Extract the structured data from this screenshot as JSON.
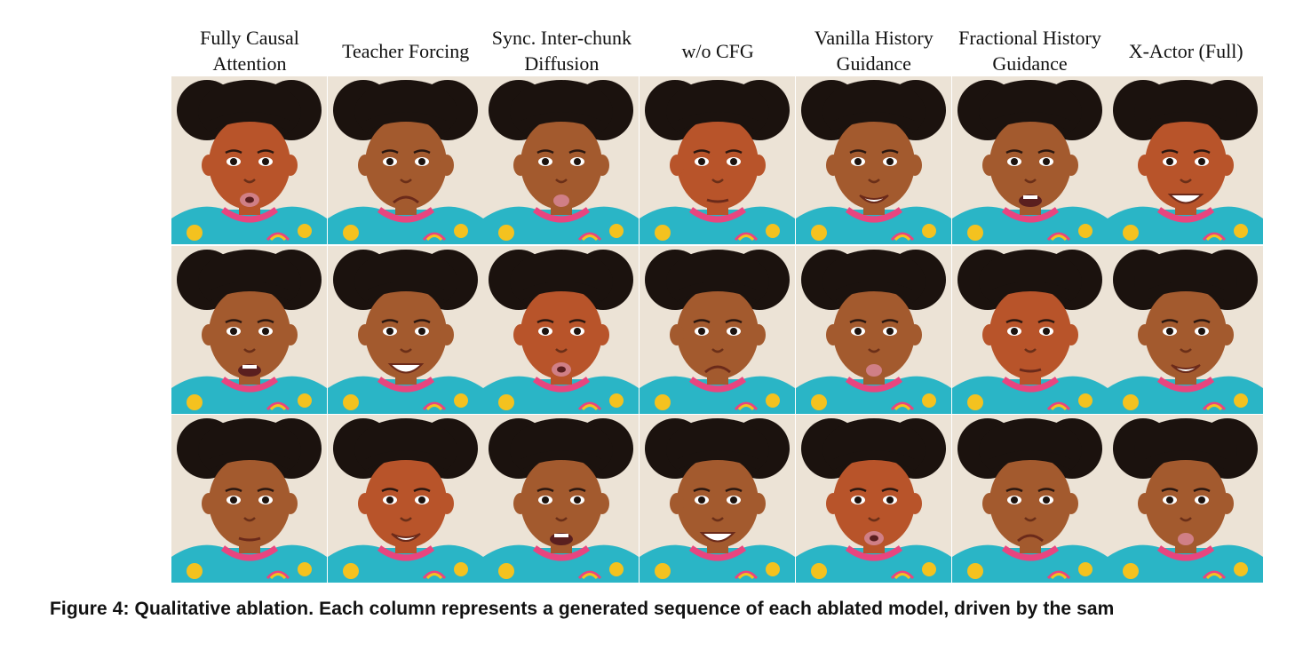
{
  "figure": {
    "columns": [
      {
        "label": "Fully Causal\nAttention"
      },
      {
        "label": "Teacher Forcing"
      },
      {
        "label": "Sync. Inter-chunk\nDiffusion"
      },
      {
        "label": "w/o CFG"
      },
      {
        "label": "Vanilla History\nGuidance"
      },
      {
        "label": "Fractional History\nGuidance"
      },
      {
        "label": "X-Actor (Full)"
      }
    ],
    "rows": 3,
    "caption": "Figure 4: Qualitative ablation. Each column represents a generated sequence of each ablated model, driven by the sam"
  },
  "palette": {
    "background": "#ece3d6",
    "skin": "#a35a2e",
    "skin_warm": "#b8542a",
    "hair": "#1b120e",
    "shirt": "#2ab5c6",
    "collar": "#e8457f",
    "sun": "#f4c21f",
    "lips": "#d07f86"
  }
}
